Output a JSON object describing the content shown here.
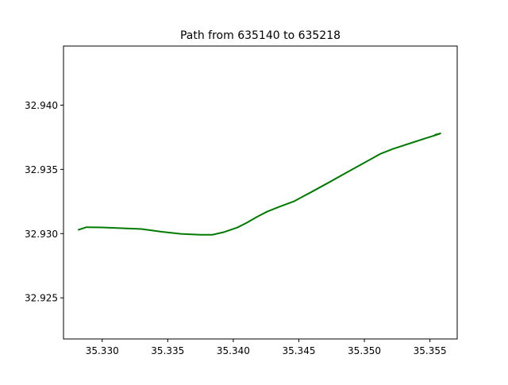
{
  "chart_data": {
    "type": "line",
    "title": "Path from 635140 to 635218",
    "xlabel": "",
    "ylabel": "",
    "xlim": [
      35.32705,
      35.35708
    ],
    "ylim": [
      32.9218,
      32.9446
    ],
    "x_ticks": [
      "35.330",
      "35.335",
      "35.340",
      "35.345",
      "35.350",
      "35.355"
    ],
    "y_ticks": [
      "32.925",
      "32.930",
      "32.935",
      "32.940"
    ],
    "grid": false,
    "legend": "none",
    "line_color": "#007a00",
    "series": [
      {
        "x": [
          35.3282,
          35.3288,
          35.33,
          35.333,
          35.3345,
          35.336,
          35.3375,
          35.3384,
          35.3393,
          35.3403,
          35.341,
          35.3418,
          35.3426,
          35.3436,
          35.3446,
          35.3458,
          35.3472,
          35.3486,
          35.35,
          35.3512,
          35.3522,
          35.3534,
          35.3546,
          35.3554,
          35.3558,
          35.3554,
          35.3557
        ],
        "y": [
          32.9303,
          32.9305,
          32.93048,
          32.93036,
          32.93015,
          32.92998,
          32.92991,
          32.92991,
          32.93012,
          32.93047,
          32.93083,
          32.9313,
          32.93172,
          32.93212,
          32.9325,
          32.93315,
          32.93393,
          32.93473,
          32.93552,
          32.9362,
          32.9366,
          32.937,
          32.9374,
          32.93765,
          32.9378,
          32.9377,
          32.93775
        ]
      }
    ]
  }
}
